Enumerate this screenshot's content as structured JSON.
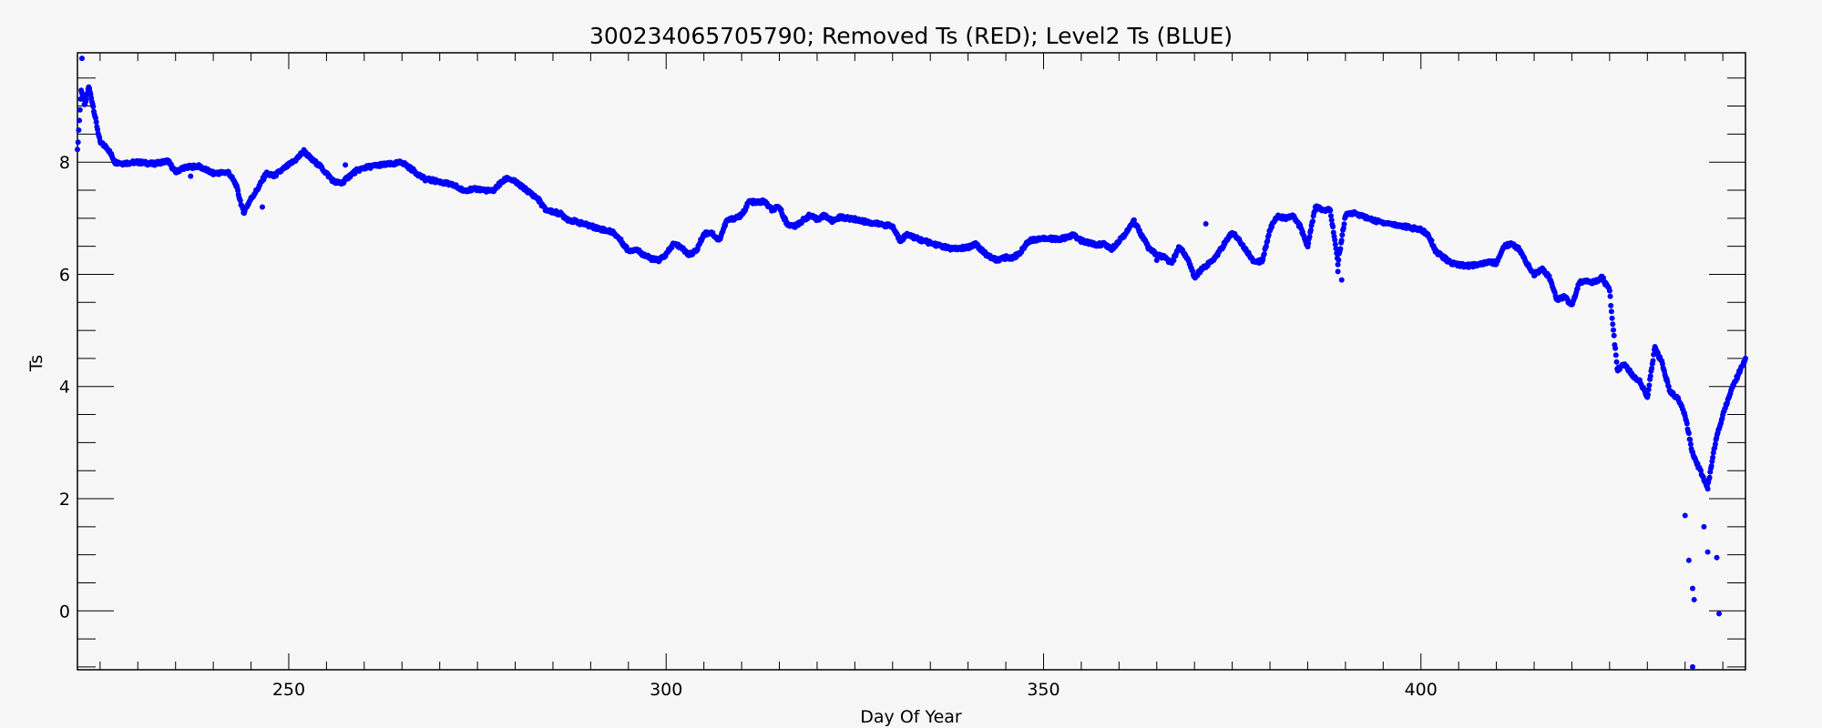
{
  "chart_data": {
    "type": "scatter",
    "title": "300234065705790; Removed Ts (RED); Level2 Ts (BLUE)",
    "xlabel": "Day Of Year",
    "ylabel": "Ts",
    "xlim": [
      222,
      443
    ],
    "ylim": [
      -1.05,
      9.95
    ],
    "x_ticks": [
      250,
      300,
      350,
      400
    ],
    "x_tick_labels": [
      "250",
      "300",
      "350",
      "400"
    ],
    "x_minor_step": 5,
    "y_ticks": [
      0,
      2,
      4,
      6,
      8
    ],
    "y_tick_labels": [
      "0",
      "2",
      "4",
      "6",
      "8"
    ],
    "y_minor_step": 0.5,
    "grid": false,
    "series": [
      {
        "color": "#0000ff",
        "trace": [
          [
            222.0,
            8.2
          ],
          [
            222.5,
            9.3
          ],
          [
            223.0,
            9.0
          ],
          [
            223.5,
            9.35
          ],
          [
            224.0,
            9.05
          ],
          [
            224.5,
            8.7
          ],
          [
            225.0,
            8.35
          ],
          [
            226.0,
            8.25
          ],
          [
            227.0,
            8.0
          ],
          [
            228.0,
            7.98
          ],
          [
            230.0,
            8.0
          ],
          [
            232.0,
            7.97
          ],
          [
            234.0,
            8.02
          ],
          [
            235.0,
            7.82
          ],
          [
            236.0,
            7.9
          ],
          [
            238.0,
            7.93
          ],
          [
            240.0,
            7.8
          ],
          [
            242.0,
            7.82
          ],
          [
            243.0,
            7.6
          ],
          [
            244.0,
            7.1
          ],
          [
            245.0,
            7.35
          ],
          [
            246.0,
            7.55
          ],
          [
            247.0,
            7.8
          ],
          [
            248.0,
            7.75
          ],
          [
            249.0,
            7.85
          ],
          [
            250.0,
            7.95
          ],
          [
            251.0,
            8.05
          ],
          [
            252.0,
            8.2
          ],
          [
            253.0,
            8.05
          ],
          [
            254.0,
            7.95
          ],
          [
            255.0,
            7.8
          ],
          [
            256.0,
            7.65
          ],
          [
            257.0,
            7.62
          ],
          [
            258.0,
            7.75
          ],
          [
            259.0,
            7.85
          ],
          [
            260.0,
            7.9
          ],
          [
            262.0,
            7.95
          ],
          [
            264.0,
            7.97
          ],
          [
            265.0,
            8.0
          ],
          [
            266.0,
            7.9
          ],
          [
            267.0,
            7.8
          ],
          [
            268.0,
            7.7
          ],
          [
            270.0,
            7.65
          ],
          [
            272.0,
            7.58
          ],
          [
            273.0,
            7.5
          ],
          [
            275.0,
            7.52
          ],
          [
            277.0,
            7.48
          ],
          [
            278.0,
            7.62
          ],
          [
            279.0,
            7.72
          ],
          [
            280.0,
            7.65
          ],
          [
            281.0,
            7.55
          ],
          [
            282.0,
            7.45
          ],
          [
            283.0,
            7.35
          ],
          [
            284.0,
            7.15
          ],
          [
            286.0,
            7.08
          ],
          [
            287.0,
            6.98
          ],
          [
            289.0,
            6.9
          ],
          [
            291.0,
            6.82
          ],
          [
            293.0,
            6.75
          ],
          [
            294.0,
            6.6
          ],
          [
            295.0,
            6.42
          ],
          [
            296.0,
            6.45
          ],
          [
            297.0,
            6.35
          ],
          [
            298.0,
            6.28
          ],
          [
            299.0,
            6.25
          ],
          [
            300.0,
            6.35
          ],
          [
            301.0,
            6.55
          ],
          [
            302.0,
            6.48
          ],
          [
            303.0,
            6.35
          ],
          [
            304.0,
            6.42
          ],
          [
            305.0,
            6.72
          ],
          [
            306.0,
            6.75
          ],
          [
            307.0,
            6.6
          ],
          [
            308.0,
            6.95
          ],
          [
            309.0,
            7.0
          ],
          [
            310.0,
            7.05
          ],
          [
            311.0,
            7.3
          ],
          [
            312.0,
            7.28
          ],
          [
            313.0,
            7.3
          ],
          [
            314.0,
            7.15
          ],
          [
            315.0,
            7.2
          ],
          [
            316.0,
            6.9
          ],
          [
            317.0,
            6.85
          ],
          [
            318.0,
            6.95
          ],
          [
            319.0,
            7.05
          ],
          [
            320.0,
            6.98
          ],
          [
            321.0,
            7.05
          ],
          [
            322.0,
            6.95
          ],
          [
            323.0,
            7.02
          ],
          [
            325.0,
            6.98
          ],
          [
            327.0,
            6.92
          ],
          [
            329.0,
            6.88
          ],
          [
            330.0,
            6.85
          ],
          [
            331.0,
            6.6
          ],
          [
            332.0,
            6.72
          ],
          [
            333.0,
            6.65
          ],
          [
            334.0,
            6.6
          ],
          [
            336.0,
            6.52
          ],
          [
            338.0,
            6.45
          ],
          [
            340.0,
            6.48
          ],
          [
            341.0,
            6.55
          ],
          [
            342.0,
            6.4
          ],
          [
            343.0,
            6.3
          ],
          [
            344.0,
            6.25
          ],
          [
            345.0,
            6.3
          ],
          [
            346.0,
            6.3
          ],
          [
            347.0,
            6.4
          ],
          [
            348.0,
            6.6
          ],
          [
            350.0,
            6.65
          ],
          [
            352.0,
            6.62
          ],
          [
            354.0,
            6.7
          ],
          [
            355.0,
            6.6
          ],
          [
            357.0,
            6.52
          ],
          [
            358.0,
            6.55
          ],
          [
            359.0,
            6.45
          ],
          [
            360.0,
            6.6
          ],
          [
            361.0,
            6.75
          ],
          [
            362.0,
            6.95
          ],
          [
            363.0,
            6.7
          ],
          [
            364.0,
            6.45
          ],
          [
            365.0,
            6.35
          ],
          [
            366.0,
            6.3
          ],
          [
            367.0,
            6.2
          ],
          [
            368.0,
            6.5
          ],
          [
            369.0,
            6.3
          ],
          [
            370.0,
            5.95
          ],
          [
            371.0,
            6.1
          ],
          [
            372.0,
            6.2
          ],
          [
            373.0,
            6.35
          ],
          [
            374.0,
            6.55
          ],
          [
            375.0,
            6.75
          ],
          [
            376.0,
            6.6
          ],
          [
            377.0,
            6.4
          ],
          [
            378.0,
            6.2
          ],
          [
            379.0,
            6.25
          ],
          [
            380.0,
            6.8
          ],
          [
            381.0,
            7.05
          ],
          [
            382.0,
            7.0
          ],
          [
            383.0,
            7.05
          ],
          [
            384.0,
            6.85
          ],
          [
            385.0,
            6.5
          ],
          [
            386.0,
            7.2
          ],
          [
            387.0,
            7.15
          ],
          [
            388.0,
            7.15
          ],
          [
            389.0,
            6.2
          ],
          [
            390.0,
            7.05
          ],
          [
            391.0,
            7.1
          ],
          [
            392.0,
            7.05
          ],
          [
            394.0,
            6.95
          ],
          [
            396.0,
            6.9
          ],
          [
            398.0,
            6.85
          ],
          [
            399.0,
            6.82
          ],
          [
            400.0,
            6.8
          ],
          [
            401.0,
            6.7
          ],
          [
            402.0,
            6.4
          ],
          [
            403.0,
            6.3
          ],
          [
            404.0,
            6.2
          ],
          [
            406.0,
            6.15
          ],
          [
            408.0,
            6.18
          ],
          [
            409.0,
            6.22
          ],
          [
            410.0,
            6.2
          ],
          [
            411.0,
            6.5
          ],
          [
            412.0,
            6.55
          ],
          [
            413.0,
            6.45
          ],
          [
            414.0,
            6.2
          ],
          [
            415.0,
            6.0
          ],
          [
            416.0,
            6.1
          ],
          [
            417.0,
            5.95
          ],
          [
            418.0,
            5.55
          ],
          [
            419.0,
            5.6
          ],
          [
            420.0,
            5.45
          ],
          [
            421.0,
            5.85
          ],
          [
            422.0,
            5.9
          ],
          [
            423.0,
            5.85
          ],
          [
            424.0,
            5.95
          ],
          [
            425.0,
            5.7
          ],
          [
            426.0,
            4.3
          ],
          [
            427.0,
            4.4
          ],
          [
            428.0,
            4.2
          ],
          [
            429.0,
            4.1
          ],
          [
            430.0,
            3.8
          ],
          [
            431.0,
            4.7
          ],
          [
            432.0,
            4.4
          ],
          [
            433.0,
            3.9
          ],
          [
            434.0,
            3.8
          ],
          [
            435.0,
            3.5
          ],
          [
            436.0,
            2.8
          ],
          [
            437.0,
            2.5
          ],
          [
            438.0,
            2.2
          ],
          [
            439.0,
            3.0
          ],
          [
            440.0,
            3.5
          ],
          [
            441.0,
            3.9
          ],
          [
            442.0,
            4.2
          ],
          [
            443.0,
            4.5
          ]
        ],
        "outliers": [
          [
            222.6,
            9.85
          ],
          [
            237.0,
            7.75
          ],
          [
            246.5,
            7.2
          ],
          [
            257.5,
            7.95
          ],
          [
            287.0,
            6.95
          ],
          [
            365.0,
            6.25
          ],
          [
            371.5,
            6.9
          ],
          [
            385.0,
            6.6
          ],
          [
            389.0,
            6.05
          ],
          [
            389.5,
            5.9
          ],
          [
            435.0,
            1.7
          ],
          [
            435.5,
            0.9
          ],
          [
            436.0,
            0.4
          ],
          [
            436.2,
            0.2
          ],
          [
            437.5,
            1.5
          ],
          [
            438.0,
            1.05
          ],
          [
            439.2,
            0.95
          ],
          [
            439.5,
            -0.05
          ],
          [
            436.0,
            -1.0
          ]
        ]
      }
    ]
  }
}
